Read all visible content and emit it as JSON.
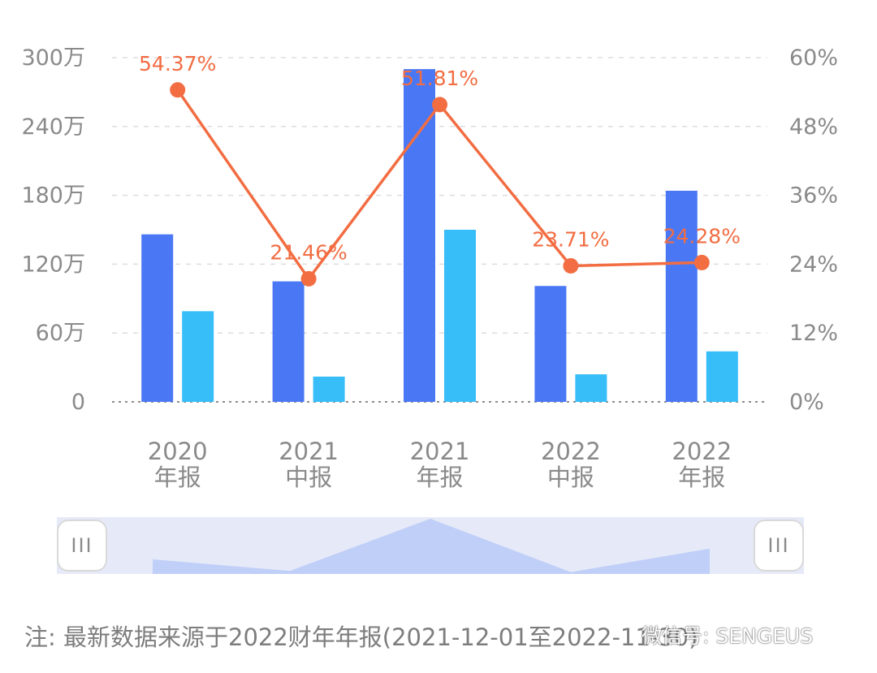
{
  "chart_data": {
    "type": "bar",
    "categories": [
      [
        "2020",
        "年报"
      ],
      [
        "2021",
        "中报"
      ],
      [
        "2021",
        "年报"
      ],
      [
        "2022",
        "中报"
      ],
      [
        "2022",
        "年报"
      ]
    ],
    "series": [
      {
        "type": "bar",
        "axis": "left",
        "color": "#4a78f5",
        "values": [
          1460000,
          1050000,
          2900000,
          1010000,
          1840000
        ]
      },
      {
        "type": "bar",
        "axis": "left",
        "color": "#37bdf8",
        "values": [
          790000,
          220000,
          1500000,
          240000,
          440000
        ]
      },
      {
        "type": "line",
        "axis": "right",
        "color": "#f26d42",
        "values": [
          54.37,
          21.46,
          51.81,
          23.71,
          24.28
        ],
        "labels": [
          "54.37%",
          "21.46%",
          "51.81%",
          "23.71%",
          "24.28%"
        ]
      }
    ],
    "left_axis": {
      "min": 0,
      "max": 3000000,
      "ticks": [
        0,
        600000,
        1200000,
        1800000,
        2400000,
        3000000
      ],
      "tick_labels": [
        "0",
        "60万",
        "120万",
        "180万",
        "240万",
        "300万"
      ]
    },
    "right_axis": {
      "min": 0,
      "max": 60,
      "ticks": [
        0,
        12,
        24,
        36,
        48,
        60
      ],
      "tick_labels": [
        "0%",
        "12%",
        "24%",
        "36%",
        "48%",
        "60%"
      ]
    },
    "grid": true
  },
  "slider": {
    "left_handle_label": "III",
    "right_handle_label": "III"
  },
  "footnote": "注: 最新数据来源于2022财年年报(2021-12-01至2022-11-30)",
  "watermark": "微信号: SENGEUS"
}
